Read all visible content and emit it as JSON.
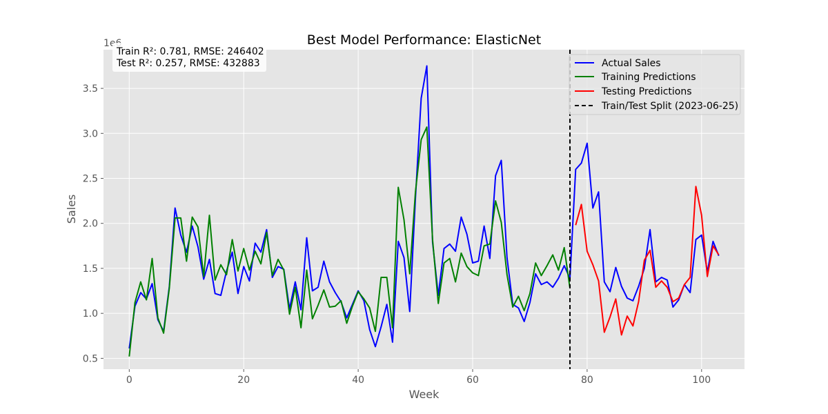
{
  "chart_data": {
    "type": "line",
    "title": "Best Model Performance: ElasticNet",
    "xlabel": "Week",
    "ylabel": "Sales",
    "y_offset_label": "1e6",
    "xlim": [
      -4.5,
      107.5
    ],
    "ylim": [
      0.38,
      3.93
    ],
    "x_ticks": [
      0,
      20,
      40,
      60,
      80,
      100
    ],
    "y_ticks": [
      0.5,
      1.0,
      1.5,
      2.0,
      2.5,
      3.0,
      3.5
    ],
    "y_tick_labels": [
      "0.5",
      "1.0",
      "1.5",
      "2.0",
      "2.5",
      "3.0",
      "3.5"
    ],
    "grid": true,
    "legend_position": "top-right",
    "annotation": [
      "Train R²: 0.781, RMSE: 246402",
      "Test R²: 0.257, RMSE: 432883"
    ],
    "split_x": 77,
    "series": [
      {
        "name": "Actual Sales",
        "color": "#0000ff",
        "x_start": 0,
        "values": [
          0.61,
          1.08,
          1.23,
          1.16,
          1.33,
          0.93,
          0.8,
          1.3,
          2.17,
          1.87,
          1.68,
          1.97,
          1.74,
          1.38,
          1.6,
          1.22,
          1.2,
          1.47,
          1.68,
          1.22,
          1.52,
          1.36,
          1.78,
          1.68,
          1.93,
          1.4,
          1.52,
          1.49,
          1.05,
          1.35,
          1.04,
          1.84,
          1.25,
          1.29,
          1.58,
          1.35,
          1.23,
          1.13,
          0.95,
          1.1,
          1.25,
          1.14,
          0.82,
          0.63,
          0.85,
          1.1,
          0.68,
          1.8,
          1.62,
          1.02,
          2.28,
          3.39,
          3.75,
          1.79,
          1.2,
          1.72,
          1.77,
          1.69,
          2.07,
          1.88,
          1.56,
          1.58,
          1.97,
          1.61,
          2.53,
          2.7,
          1.62,
          1.1,
          1.06,
          0.91,
          1.12,
          1.44,
          1.32,
          1.35,
          1.29,
          1.39,
          1.53,
          1.39,
          2.6,
          2.67,
          2.89,
          2.17,
          2.35,
          1.35,
          1.24,
          1.51,
          1.3,
          1.17,
          1.14,
          1.3,
          1.5,
          1.93,
          1.35,
          1.4,
          1.37,
          1.07,
          1.15,
          1.32,
          1.23,
          1.82,
          1.87,
          1.46,
          1.8,
          1.64
        ]
      },
      {
        "name": "Training Predictions",
        "color": "#008000",
        "x_start": 0,
        "values": [
          0.52,
          1.12,
          1.35,
          1.15,
          1.61,
          0.95,
          0.78,
          1.28,
          2.06,
          2.06,
          1.58,
          2.07,
          1.96,
          1.41,
          2.09,
          1.37,
          1.54,
          1.43,
          1.82,
          1.47,
          1.72,
          1.48,
          1.69,
          1.55,
          1.9,
          1.42,
          1.6,
          1.48,
          0.99,
          1.29,
          0.84,
          1.48,
          0.94,
          1.09,
          1.26,
          1.07,
          1.08,
          1.14,
          0.89,
          1.08,
          1.24,
          1.16,
          1.06,
          0.8,
          1.4,
          1.4,
          0.84,
          2.4,
          2.04,
          1.44,
          2.35,
          2.93,
          3.07,
          1.82,
          1.11,
          1.56,
          1.61,
          1.35,
          1.67,
          1.52,
          1.45,
          1.42,
          1.75,
          1.77,
          2.25,
          2.01,
          1.43,
          1.07,
          1.19,
          1.03,
          1.22,
          1.56,
          1.42,
          1.53,
          1.65,
          1.48,
          1.73,
          1.28
        ]
      },
      {
        "name": "Testing Predictions",
        "color": "#ff0000",
        "x_start": 78,
        "values": [
          1.98,
          2.21,
          1.69,
          1.54,
          1.36,
          0.79,
          0.96,
          1.16,
          0.76,
          0.97,
          0.86,
          1.13,
          1.59,
          1.7,
          1.29,
          1.36,
          1.29,
          1.13,
          1.17,
          1.32,
          1.4,
          2.41,
          2.09,
          1.41,
          1.75,
          1.65
        ]
      }
    ],
    "split_line_label": "Train/Test Split (2023-06-25)"
  }
}
